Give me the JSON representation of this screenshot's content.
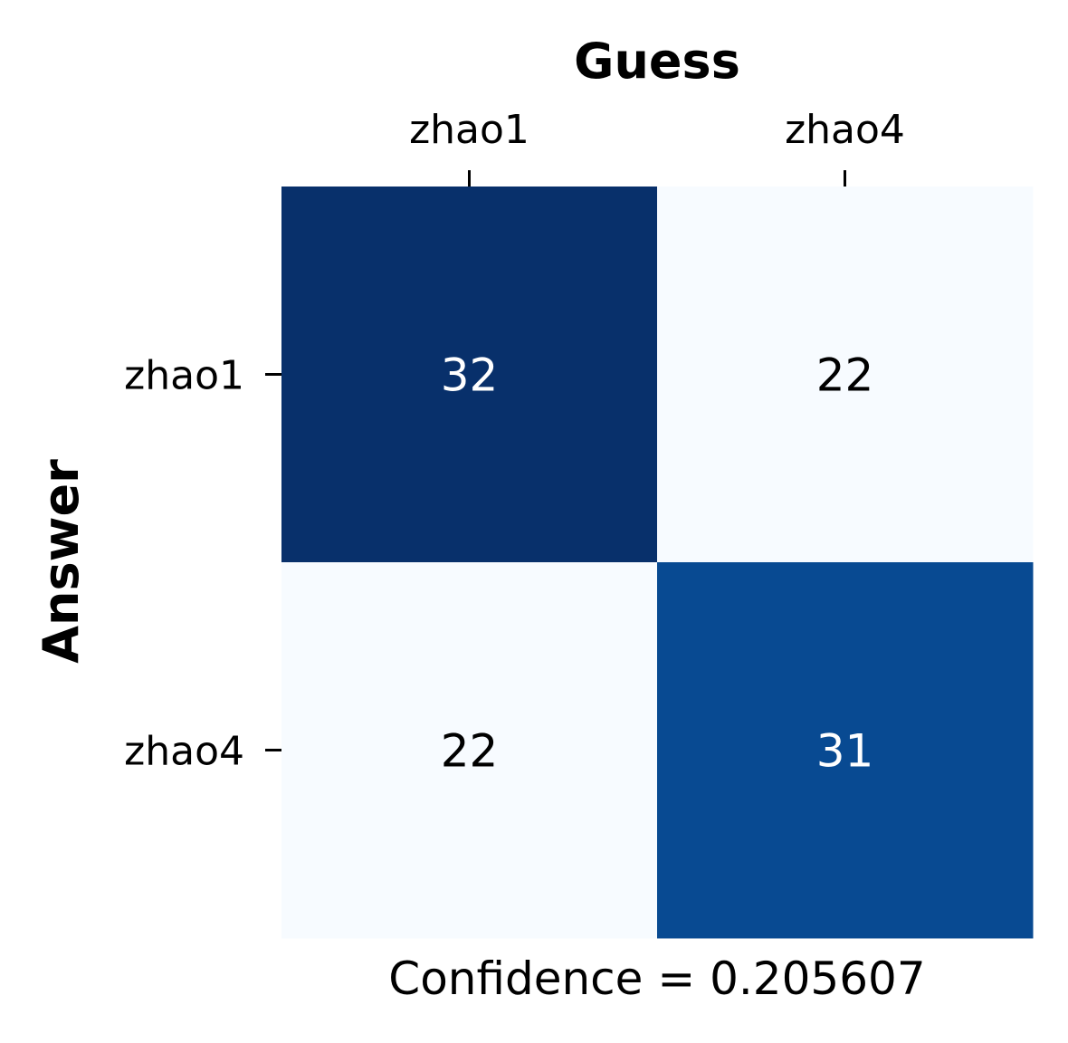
{
  "chart_data": {
    "type": "heatmap",
    "xlabel": "Guess",
    "ylabel": "Answer",
    "x_categories": [
      "zhao1",
      "zhao4"
    ],
    "y_categories": [
      "zhao1",
      "zhao4"
    ],
    "values": [
      [
        32,
        22
      ],
      [
        22,
        31
      ]
    ],
    "caption": "Confidence = 0.205607",
    "colormap": "Blues",
    "colorbar": false,
    "x_tick_position": "top",
    "colors": {
      "low": "#f7fbff",
      "high": "#08306b",
      "mid_high": "#08488e",
      "text_dark": "#000000",
      "text_light": "#ffffff"
    }
  }
}
